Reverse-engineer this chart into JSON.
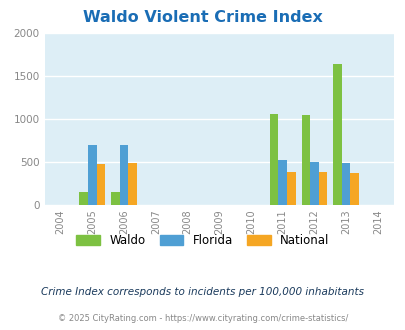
{
  "title": "Waldo Violent Crime Index",
  "years": [
    2004,
    2005,
    2006,
    2007,
    2008,
    2009,
    2010,
    2011,
    2012,
    2013,
    2014
  ],
  "waldo": [
    0,
    150,
    150,
    0,
    0,
    0,
    0,
    1060,
    1050,
    1640,
    0
  ],
  "florida": [
    0,
    700,
    700,
    0,
    0,
    0,
    0,
    520,
    500,
    480,
    0
  ],
  "national": [
    0,
    470,
    480,
    0,
    0,
    0,
    0,
    380,
    375,
    365,
    0
  ],
  "waldo_color": "#7dc142",
  "florida_color": "#4f9fd4",
  "national_color": "#f5a623",
  "ylim": [
    0,
    2000
  ],
  "yticks": [
    0,
    500,
    1000,
    1500,
    2000
  ],
  "bar_width": 0.27,
  "title_color": "#1a6db5",
  "subtitle": "Crime Index corresponds to incidents per 100,000 inhabitants",
  "footer": "© 2025 CityRating.com - https://www.cityrating.com/crime-statistics/",
  "grid_color": "#ffffff",
  "axis_bg": "#ddeef6",
  "tick_color": "#888888",
  "subtitle_color": "#1a3a5c",
  "footer_color": "#888888",
  "footer_link_color": "#4f9fd4"
}
